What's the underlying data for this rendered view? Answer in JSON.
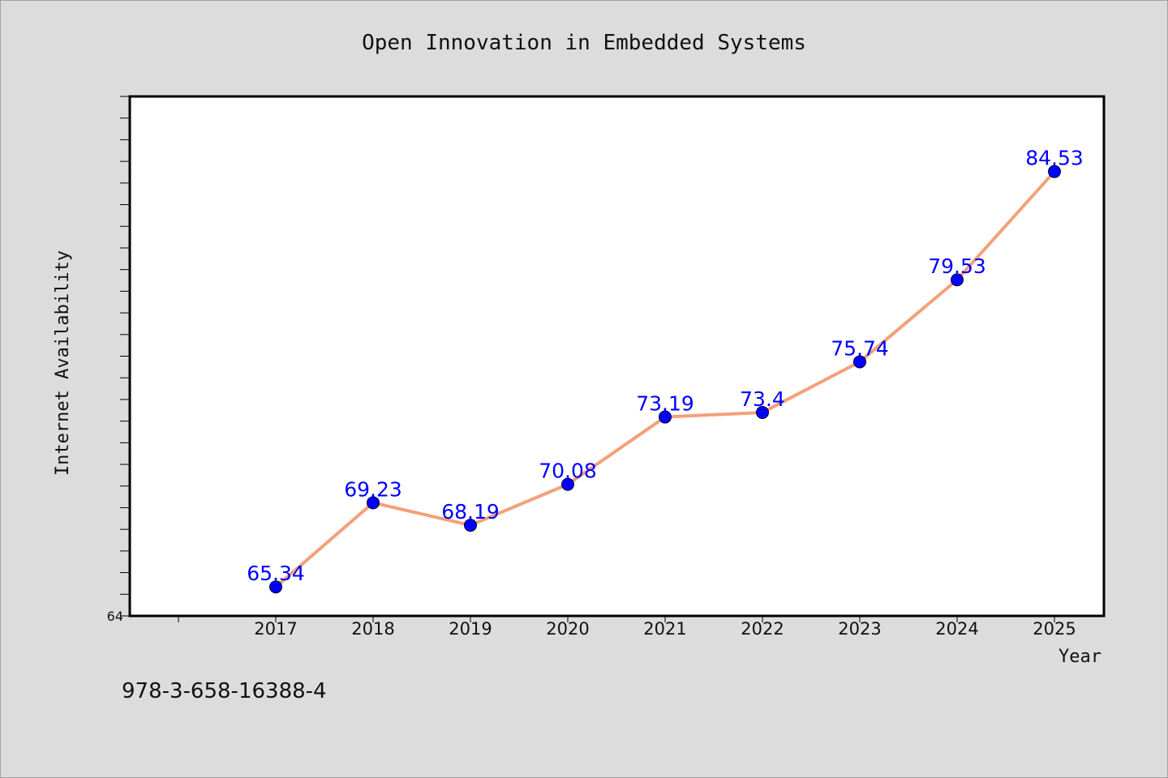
{
  "chart_data": {
    "type": "line",
    "title": "Open Innovation in Embedded Systems",
    "xlabel": "Year",
    "ylabel": "Internet Availability",
    "categories": [
      "2017",
      "2018",
      "2019",
      "2020",
      "2021",
      "2022",
      "2023",
      "2024",
      "2025"
    ],
    "series": [
      {
        "values": [
          65.34,
          69.23,
          68.19,
          70.08,
          73.19,
          73.4,
          75.74,
          79.53,
          84.53
        ],
        "data_labels": [
          "65.34",
          "69.23",
          "68.19",
          "70.08",
          "73.19",
          "73.4",
          "75.74",
          "79.53",
          "84.53"
        ],
        "line_color": "#f4a07a",
        "marker_color": "#0000ff"
      }
    ],
    "ylim": [
      64,
      88
    ],
    "y_min_label": "64",
    "grid": false,
    "legend": "none"
  },
  "footer_text": "978-3-658-16388-4",
  "colors": {
    "background": "#dcdcdc",
    "plot_background": "#ffffff",
    "data_label": "#0000ff"
  }
}
